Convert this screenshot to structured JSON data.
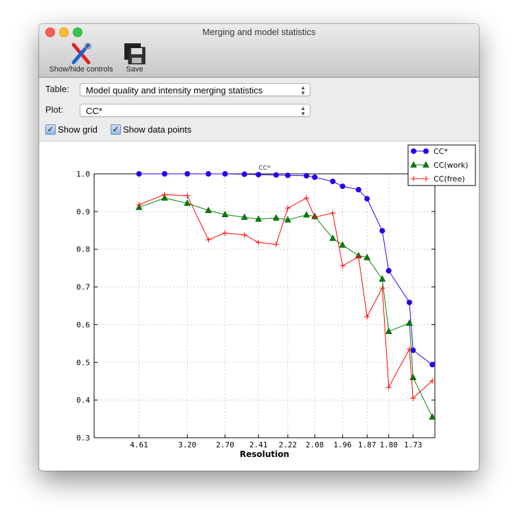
{
  "window": {
    "title": "Merging and model statistics"
  },
  "toolbar": {
    "show_hide": "Show/hide controls",
    "save": "Save"
  },
  "controls": {
    "table_label": "Table:",
    "table_value": "Model quality and intensity merging statistics",
    "plot_label": "Plot:",
    "plot_value": "CC*",
    "show_grid": "Show grid",
    "show_grid_checked": true,
    "show_points": "Show data points",
    "show_points_checked": true
  },
  "chart_data": {
    "type": "line",
    "title": "CC*",
    "xlabel": "Resolution",
    "ylabel": "",
    "x_scale": "1/d^2",
    "ylim": [
      0.3,
      1.0
    ],
    "grid": true,
    "legend_placement": "top-right",
    "xticks": [
      "4.61",
      "3.20",
      "2.70",
      "2.41",
      "2.22",
      "2.08",
      "1.96",
      "1.87",
      "1.80",
      "1.73"
    ],
    "yticks": [
      "1.0",
      "0.9",
      "0.8",
      "0.7",
      "0.6",
      "0.5",
      "0.4",
      "0.3"
    ],
    "x": [
      4.61,
      3.68,
      3.2,
      2.89,
      2.7,
      2.52,
      2.41,
      2.29,
      2.22,
      2.12,
      2.08,
      2.0,
      1.96,
      1.9,
      1.87,
      1.82,
      1.8,
      1.74,
      1.73,
      1.68
    ],
    "series": [
      {
        "name": "CC*",
        "color": "#2200ee",
        "marker": "circle",
        "values": [
          1.0,
          1.0,
          1.0,
          1.0,
          1.0,
          0.999,
          0.998,
          0.997,
          0.996,
          0.995,
          0.991,
          0.98,
          0.967,
          0.958,
          0.934,
          0.849,
          0.743,
          0.659,
          0.532,
          0.494
        ]
      },
      {
        "name": "CC(work)",
        "color": "#008000",
        "marker": "triangle",
        "values": [
          0.911,
          0.936,
          0.922,
          0.903,
          0.892,
          0.885,
          0.88,
          0.883,
          0.878,
          0.891,
          0.887,
          0.829,
          0.811,
          0.783,
          0.778,
          0.721,
          0.582,
          0.604,
          0.46,
          0.355
        ]
      },
      {
        "name": "CC(free)",
        "color": "#ff0000",
        "marker": "plus",
        "values": [
          0.918,
          0.945,
          0.942,
          0.825,
          0.843,
          0.838,
          0.818,
          0.813,
          0.909,
          0.936,
          0.885,
          0.896,
          0.756,
          0.78,
          0.621,
          0.697,
          0.434,
          0.535,
          0.405,
          0.451
        ]
      }
    ]
  }
}
